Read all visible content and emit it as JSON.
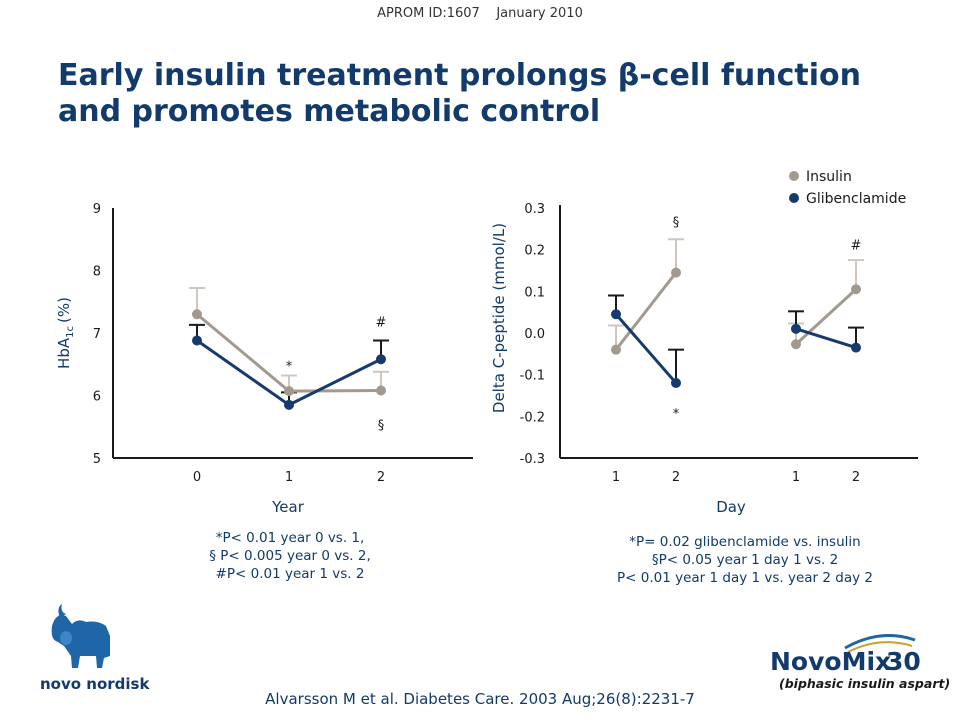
{
  "header": {
    "id_label": "APROM ID:1607",
    "date": "January 2010"
  },
  "title": {
    "line1": "Early insulin treatment prolongs β-cell function",
    "line2": "and promotes metabolic control"
  },
  "colors": {
    "insulin": "#a39a8f",
    "glibenclamide": "#163a6e",
    "title": "#123a6b",
    "errorbar_insulin": "#cdc7c0",
    "errorbar_glib": "#1a1a1a"
  },
  "legend": {
    "insulin": "Insulin",
    "glibenclamide": "Glibenclamide"
  },
  "chart_data": [
    {
      "type": "line",
      "ylabel_main": "HbA",
      "ylabel_sub": "1c",
      "ylabel_unit": "(%)",
      "xlabel": "Year",
      "categories": [
        "0",
        "1",
        "2"
      ],
      "y_ticks": [
        "5",
        "6",
        "7",
        "8",
        "9"
      ],
      "ylim": [
        5,
        9
      ],
      "series": [
        {
          "name": "Insulin",
          "values": [
            7.3,
            6.07,
            6.08
          ],
          "errors": [
            0.42,
            0.25,
            0.3
          ]
        },
        {
          "name": "Glibenclamide",
          "values": [
            6.88,
            5.85,
            6.58
          ],
          "errors": [
            0.25,
            0.2,
            0.3
          ]
        }
      ],
      "annotations": [
        {
          "text": "*",
          "category": "1",
          "value": 6.5
        },
        {
          "text": "#",
          "category": "2",
          "value": 7.2
        },
        {
          "text": "§",
          "category": "2",
          "value": 5.55
        }
      ]
    },
    {
      "type": "line",
      "ylabel": "Delta C-peptide (mmol/L)",
      "xlabel": "Day",
      "categories": [
        "1",
        "2",
        "1",
        "2"
      ],
      "y_ticks": [
        "0.3",
        "0.2",
        "0.1",
        "0.0",
        "-0.1",
        "-0.2",
        "-0.3"
      ],
      "ylim": [
        -0.3,
        0.3
      ],
      "series": [
        {
          "name": "Insulin",
          "segments": [
            {
              "values": [
                -0.04,
                0.145
              ],
              "errors": [
                0.058,
                0.08
              ]
            },
            {
              "values": [
                -0.027,
                0.105
              ],
              "errors": [
                0.05,
                0.07
              ]
            }
          ]
        },
        {
          "name": "Glibenclamide",
          "segments": [
            {
              "values": [
                0.045,
                -0.12
              ],
              "errors": [
                0.045,
                0.08
              ]
            },
            {
              "values": [
                0.01,
                -0.035
              ],
              "errors": [
                0.042,
                0.048
              ]
            }
          ]
        }
      ],
      "annotations": [
        {
          "text": "§",
          "index": 1,
          "value": 0.27
        },
        {
          "text": "*",
          "index": 1,
          "value": -0.19
        },
        {
          "text": "#",
          "index": 3,
          "value": 0.215
        }
      ]
    }
  ],
  "footnotes": {
    "left": [
      "*P< 0.01 year 0 vs. 1,",
      "§ P< 0.005 year 0 vs. 2,",
      "#P< 0.01 year 1 vs. 2"
    ],
    "right": [
      "*P= 0.02 glibenclamide vs. insulin",
      "§P< 0.05 year 1 day 1 vs. 2",
      "P< 0.01 year 1 day 1 vs. year 2 day 2"
    ]
  },
  "logos": {
    "company": "novo nordisk",
    "product_name": "NovoMix",
    "product_number": "30",
    "product_subtitle": "(biphasic insulin aspart)"
  },
  "citation": "Alvarsson M et al. Diabetes Care. 2003 Aug;26(8):2231-7"
}
